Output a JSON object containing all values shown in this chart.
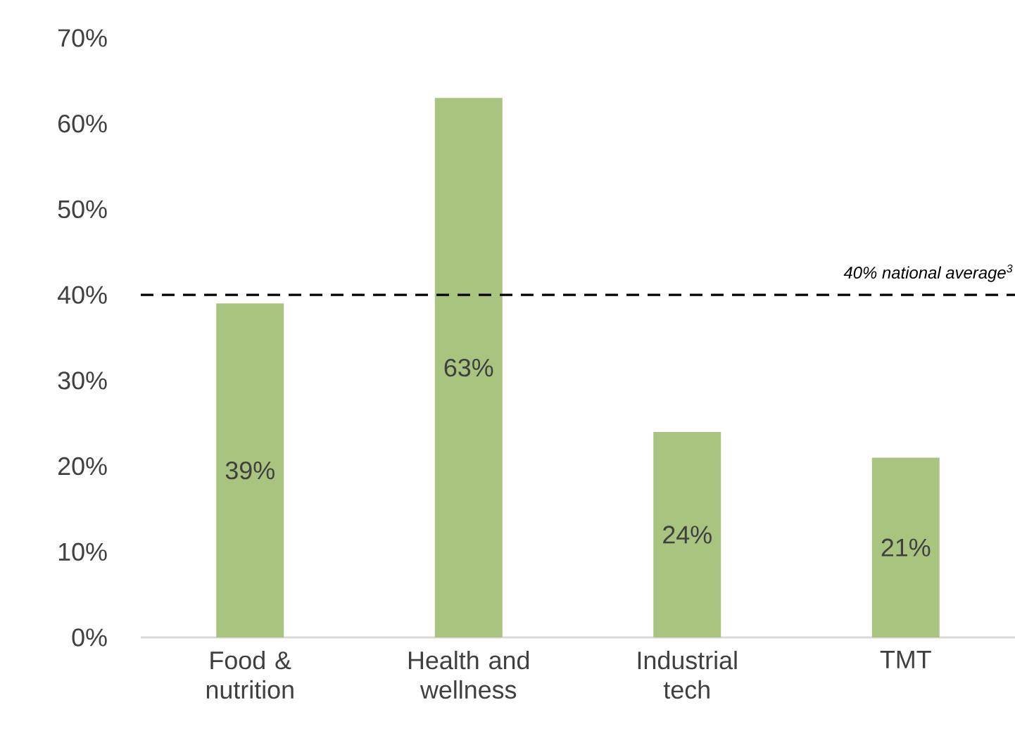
{
  "chart_data": {
    "type": "bar",
    "categories": [
      "Food & nutrition",
      "Health and wellness",
      "Industrial tech",
      "TMT"
    ],
    "values": [
      39,
      63,
      24,
      21
    ],
    "value_labels": [
      "39%",
      "63%",
      "24%",
      "21%"
    ],
    "color": "#a9c47f",
    "ylim": [
      0,
      70
    ],
    "yticks": [
      {
        "value": 0,
        "label": "0%"
      },
      {
        "value": 10,
        "label": "10%"
      },
      {
        "value": 20,
        "label": "20%"
      },
      {
        "value": 30,
        "label": "30%"
      },
      {
        "value": 40,
        "label": "40%"
      },
      {
        "value": 50,
        "label": "50%"
      },
      {
        "value": 60,
        "label": "60%"
      },
      {
        "value": 70,
        "label": "70%"
      }
    ],
    "ref_lines": [
      {
        "axis": "y",
        "value": 40,
        "label": "40% national average$^{3}$",
        "color": "#000000",
        "line_style": "dashed"
      }
    ]
  }
}
